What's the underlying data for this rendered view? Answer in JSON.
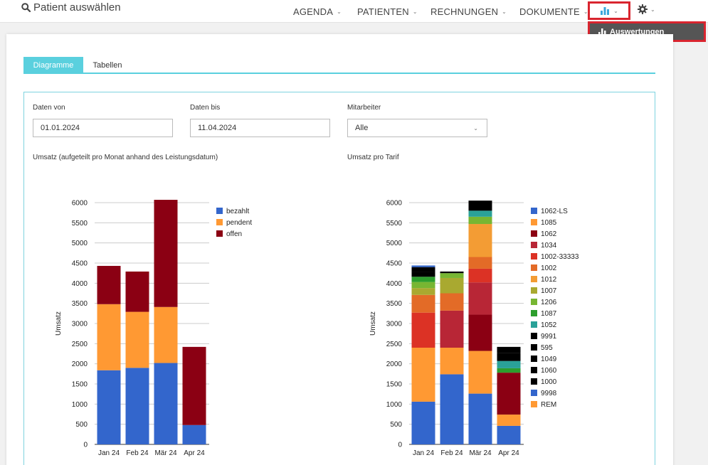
{
  "nav": {
    "search_label": "Patient auswählen",
    "items": [
      {
        "label": "AGENDA"
      },
      {
        "label": "PATIENTEN"
      },
      {
        "label": "RECHNUNGEN"
      },
      {
        "label": "DOKUMENTE"
      }
    ],
    "dropdown_item": "Auswertungen",
    "accent_color": "#3aa7dc",
    "highlight_color": "#d9252f"
  },
  "tabs": [
    {
      "label": "Diagramme",
      "active": true
    },
    {
      "label": "Tabellen",
      "active": false
    }
  ],
  "filters": {
    "date_from_label": "Daten von",
    "date_from_value": "01.01.2024",
    "date_to_label": "Daten bis",
    "date_to_value": "11.04.2024",
    "staff_label": "Mitarbeiter",
    "staff_value": "Alle"
  },
  "chart_data": [
    {
      "type": "bar",
      "stacked": true,
      "title": "Umsatz (aufgeteilt pro Monat anhand des Leistungsdatum)",
      "xlabel": "",
      "ylabel": "Umsatz",
      "ylim": [
        0,
        6000
      ],
      "yticks": [
        0,
        500,
        1000,
        1500,
        2000,
        2500,
        3000,
        3500,
        4000,
        4500,
        5000,
        5500,
        6000
      ],
      "categories": [
        "Jan 24",
        "Feb 24",
        "Mär 24",
        "Apr 24"
      ],
      "legend_position": "right",
      "series": [
        {
          "name": "bezahlt",
          "color": "#3366cc",
          "values": [
            1840,
            1900,
            2020,
            480
          ]
        },
        {
          "name": "pendent",
          "color": "#ff9933",
          "values": [
            1640,
            1390,
            1390,
            0
          ]
        },
        {
          "name": "offen",
          "color": "#8b0013",
          "values": [
            950,
            1000,
            2660,
            1940
          ]
        }
      ]
    },
    {
      "type": "bar",
      "stacked": true,
      "title": "Umsatz pro Tarif",
      "xlabel": "",
      "ylabel": "Umsatz",
      "ylim": [
        0,
        6000
      ],
      "yticks": [
        0,
        500,
        1000,
        1500,
        2000,
        2500,
        3000,
        3500,
        4000,
        4500,
        5000,
        5500,
        6000
      ],
      "categories": [
        "Jan 24",
        "Feb 24",
        "Mär 24",
        "Apr 24"
      ],
      "legend_position": "right",
      "series": [
        {
          "name": "1062-LS",
          "color": "#3366cc",
          "values": [
            1060,
            1740,
            1260,
            460
          ]
        },
        {
          "name": "1085",
          "color": "#ff9933",
          "values": [
            1340,
            660,
            1060,
            280
          ]
        },
        {
          "name": "1062",
          "color": "#8b0013",
          "values": [
            0,
            0,
            900,
            1040
          ]
        },
        {
          "name": "1034",
          "color": "#b82636",
          "values": [
            0,
            920,
            800,
            0
          ]
        },
        {
          "name": "1002-33333",
          "color": "#dc3225",
          "values": [
            870,
            0,
            340,
            0
          ]
        },
        {
          "name": "1002",
          "color": "#e36b27",
          "values": [
            440,
            430,
            290,
            0
          ]
        },
        {
          "name": "1012",
          "color": "#f39c34",
          "values": [
            0,
            0,
            820,
            0
          ]
        },
        {
          "name": "1007",
          "color": "#a9a930",
          "values": [
            170,
            380,
            0,
            0
          ]
        },
        {
          "name": "1206",
          "color": "#77b632",
          "values": [
            150,
            120,
            180,
            0
          ]
        },
        {
          "name": "1087",
          "color": "#2d9e2d",
          "values": [
            130,
            0,
            0,
            110
          ]
        },
        {
          "name": "1052",
          "color": "#2aa198",
          "values": [
            0,
            0,
            150,
            180
          ]
        },
        {
          "name": "9991",
          "color": "#000000",
          "values": [
            0,
            0,
            0,
            0
          ]
        },
        {
          "name": "595",
          "color": "#000000",
          "values": [
            0,
            0,
            0,
            0
          ]
        },
        {
          "name": "1049",
          "color": "#000000",
          "values": [
            120,
            0,
            0,
            0
          ]
        },
        {
          "name": "1060",
          "color": "#000000",
          "values": [
            0,
            0,
            0,
            200
          ]
        },
        {
          "name": "1000",
          "color": "#000000",
          "values": [
            120,
            40,
            250,
            150
          ]
        },
        {
          "name": "9998",
          "color": "#3366cc",
          "values": [
            40,
            0,
            0,
            0
          ]
        },
        {
          "name": "REM",
          "color": "#ff9933",
          "values": [
            0,
            0,
            0,
            0
          ]
        }
      ]
    }
  ]
}
